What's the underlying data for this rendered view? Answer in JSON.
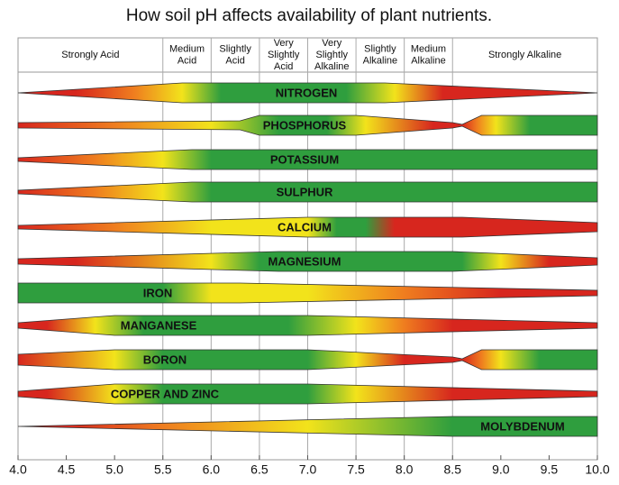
{
  "title": "How soil pH affects availability of plant nutrients.",
  "zones": [
    [
      "Strongly Acid"
    ],
    [
      "Medium",
      "Acid"
    ],
    [
      "Slightly",
      "Acid"
    ],
    [
      "Very",
      "Slightly",
      "Acid"
    ],
    [
      "Very",
      "Slightly",
      "Alkaline"
    ],
    [
      "Slightly",
      "Alkaline"
    ],
    [
      "Medium",
      "Alkaline"
    ],
    [
      "Strongly Alkaline"
    ]
  ],
  "nutrients": [
    "NITROGEN",
    "PHOSPHORUS",
    "POTASSIUM",
    "SULPHUR",
    "CALCIUM",
    "MAGNESIUM",
    "IRON",
    "MANGANESE",
    "BORON",
    "COPPER AND ZINC",
    "MOLYBDENUM"
  ],
  "axis_labels": [
    "4.0",
    "4.5",
    "5.0",
    "5.5",
    "6.0",
    "6.5",
    "7.0",
    "7.5",
    "8.0",
    "8.5",
    "9.0",
    "9.5",
    "10.0"
  ]
}
